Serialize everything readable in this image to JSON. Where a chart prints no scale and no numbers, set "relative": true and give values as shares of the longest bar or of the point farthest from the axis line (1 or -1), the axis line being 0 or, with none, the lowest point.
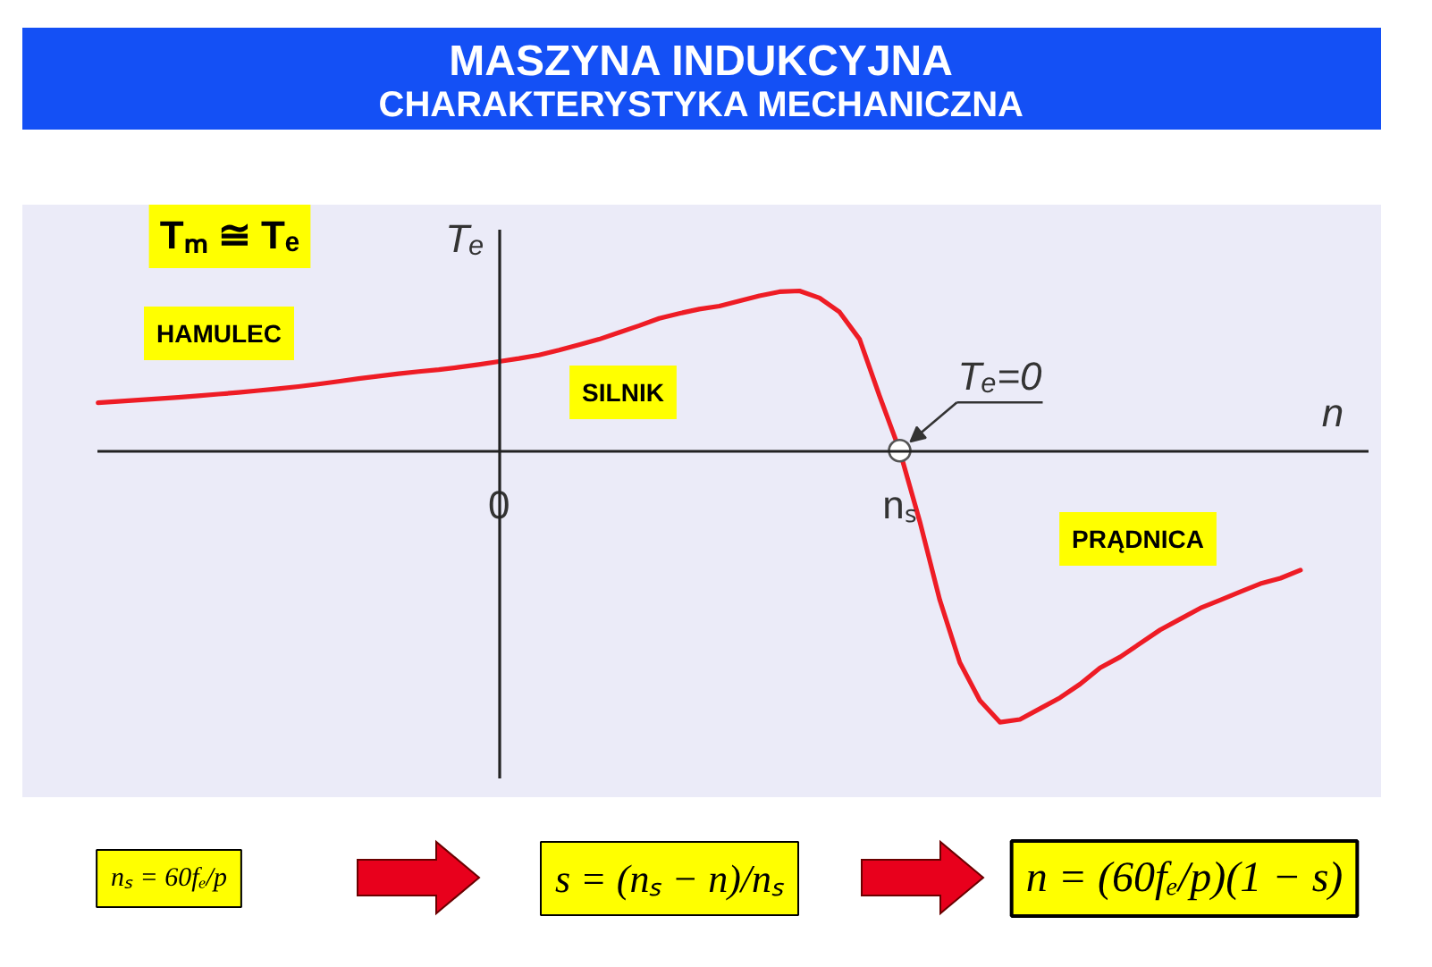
{
  "chart_data": {
    "type": "line",
    "title": "MASZYNA INDUKCYJNA",
    "subtitle": "CHARAKTERYSTYKA MECHANICZNA",
    "xlabel": "n",
    "ylabel": "Tₑ",
    "relative": true,
    "categories": [
      null,
      null,
      null,
      null,
      null,
      null,
      null,
      null,
      null,
      null,
      null,
      null,
      null,
      null,
      null,
      null,
      null,
      null,
      null,
      null,
      "0",
      null,
      null,
      null,
      null,
      null,
      null,
      null,
      null,
      null,
      null,
      null,
      null,
      null,
      null,
      null,
      null,
      null,
      null,
      null,
      "nₛ",
      null,
      null,
      null,
      null,
      null,
      null,
      null,
      null,
      null,
      null,
      null,
      null,
      null,
      null,
      null,
      null,
      null,
      null,
      null,
      null
    ],
    "values": [
      0.176,
      0.181,
      0.186,
      0.191,
      0.196,
      0.202,
      0.208,
      0.214,
      0.221,
      0.228,
      0.236,
      0.245,
      0.255,
      0.265,
      0.274,
      0.283,
      0.291,
      0.298,
      0.307,
      0.317,
      0.328,
      0.339,
      0.352,
      0.37,
      0.39,
      0.41,
      0.435,
      0.46,
      0.487,
      0.505,
      0.521,
      0.532,
      0.551,
      0.57,
      0.585,
      0.588,
      0.562,
      0.51,
      0.41,
      0.2,
      0,
      -0.26,
      -0.55,
      -0.78,
      -0.92,
      -1,
      -0.99,
      -0.95,
      -0.91,
      -0.86,
      -0.8,
      -0.76,
      -0.71,
      -0.66,
      -0.62,
      -0.58,
      -0.55,
      -0.52,
      -0.49,
      -0.47,
      -0.44
    ],
    "color": "#ee1c25",
    "annotations": [
      "Tₘ ≅ Tₑ",
      "HAMULEC",
      "SILNIK",
      "PRĄDNICA",
      {
        "text": "Tₑ=0",
        "x": "nₛ",
        "y": 0
      },
      "nₛ = 60fₑ/p",
      "s = (nₛ − n)/nₛ",
      "n = (60fₑ/p)(1 − s)"
    ]
  }
}
